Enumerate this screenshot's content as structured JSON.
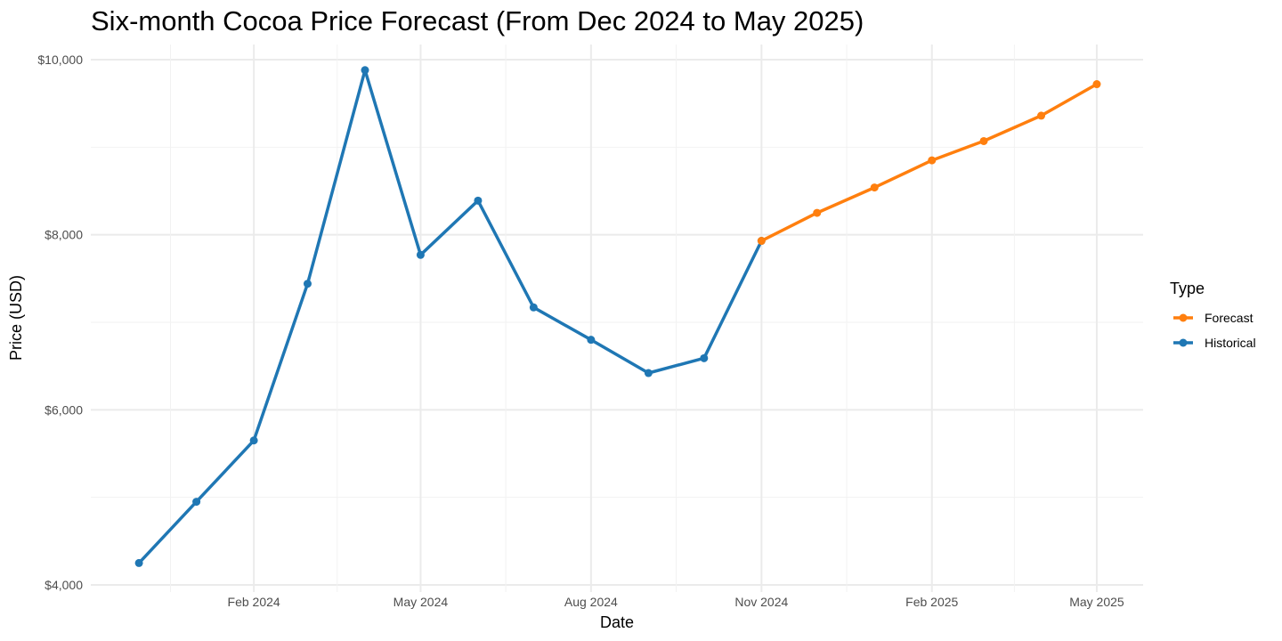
{
  "chart_data": {
    "type": "line",
    "title": "Six-month Cocoa Price Forecast (From Dec 2024 to May 2025)",
    "xlabel": "Date",
    "ylabel": "Price (USD)",
    "ylim": [
      4000,
      10000
    ],
    "y_ticks": [
      {
        "value": 4000,
        "label": "$4,000"
      },
      {
        "value": 6000,
        "label": "$6,000"
      },
      {
        "value": 8000,
        "label": "$8,000"
      },
      {
        "value": 10000,
        "label": "$10,000"
      }
    ],
    "x_range": [
      "2023-11-05",
      "2025-05-26"
    ],
    "x_ticks": [
      {
        "value": "2024-02-01",
        "label": "Feb 2024"
      },
      {
        "value": "2024-05-01",
        "label": "May 2024"
      },
      {
        "value": "2024-08-01",
        "label": "Aug 2024"
      },
      {
        "value": "2024-11-01",
        "label": "Nov 2024"
      },
      {
        "value": "2025-02-01",
        "label": "Feb 2025"
      },
      {
        "value": "2025-05-01",
        "label": "May 2025"
      }
    ],
    "grid": true,
    "legend": {
      "title": "Type",
      "position": "right"
    },
    "series": [
      {
        "name": "Forecast",
        "color": "#ff7f0e",
        "points": [
          {
            "x": "2024-11-01",
            "y": 7930
          },
          {
            "x": "2024-12-01",
            "y": 8250
          },
          {
            "x": "2025-01-01",
            "y": 8540
          },
          {
            "x": "2025-02-01",
            "y": 8850
          },
          {
            "x": "2025-03-01",
            "y": 9070
          },
          {
            "x": "2025-04-01",
            "y": 9360
          },
          {
            "x": "2025-05-01",
            "y": 9720
          }
        ]
      },
      {
        "name": "Historical",
        "color": "#1f77b4",
        "points": [
          {
            "x": "2023-12-01",
            "y": 4250
          },
          {
            "x": "2024-01-01",
            "y": 4950
          },
          {
            "x": "2024-02-01",
            "y": 5650
          },
          {
            "x": "2024-03-01",
            "y": 7440
          },
          {
            "x": "2024-04-01",
            "y": 9880
          },
          {
            "x": "2024-05-01",
            "y": 7770
          },
          {
            "x": "2024-06-01",
            "y": 8390
          },
          {
            "x": "2024-07-01",
            "y": 7170
          },
          {
            "x": "2024-08-01",
            "y": 6800
          },
          {
            "x": "2024-09-01",
            "y": 6420
          },
          {
            "x": "2024-10-01",
            "y": 6590
          },
          {
            "x": "2024-11-01",
            "y": 7930
          }
        ]
      }
    ]
  }
}
